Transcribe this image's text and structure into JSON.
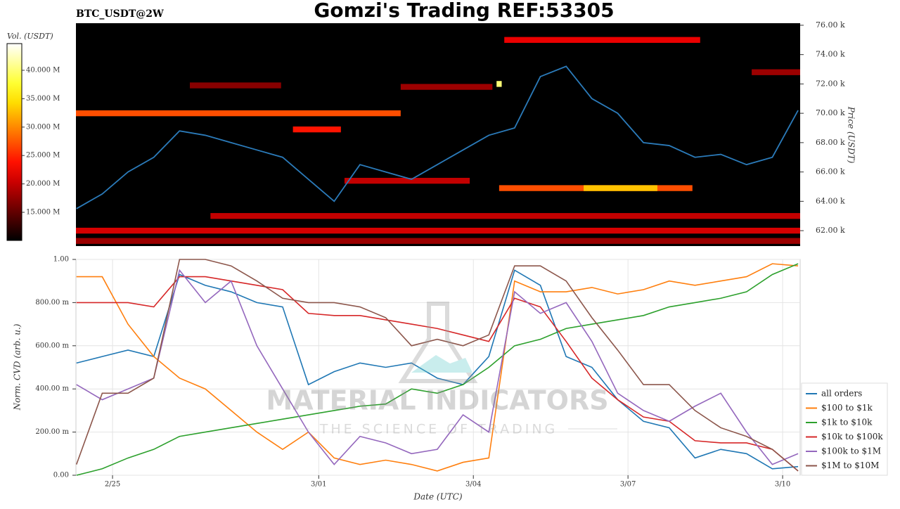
{
  "header": {
    "symbol": "BTC_USDT@2W",
    "title": "Gomzi's Trading REF:53305"
  },
  "watermark": {
    "title": "MATERIAL INDICATORS",
    "subtitle": "THE SCIENCE OF TRADING"
  },
  "chart_data": [
    {
      "type": "heatmap",
      "ylabel": "Price (USDT)",
      "xlim": [
        -0.71,
        13.34
      ],
      "ylim": [
        60950,
        76140
      ],
      "yticks": [
        {
          "value": 62000,
          "label": "62.00 k"
        },
        {
          "value": 64000,
          "label": "64.00 k"
        },
        {
          "value": 66000,
          "label": "66.00 k"
        },
        {
          "value": 68000,
          "label": "68.00 k"
        },
        {
          "value": 70000,
          "label": "70.00 k"
        },
        {
          "value": 72000,
          "label": "72.00 k"
        },
        {
          "value": 74000,
          "label": "74.00 k"
        },
        {
          "value": 76000,
          "label": "76.00 k"
        }
      ],
      "colorbar": {
        "label": "Vol. (USDT)",
        "lim": [
          10050000,
          44700000
        ],
        "ticks": [
          {
            "value": 15000000,
            "label": "15.000 M"
          },
          {
            "value": 20000000,
            "label": "20.000 M"
          },
          {
            "value": 25000000,
            "label": "25.000 M"
          },
          {
            "value": 30000000,
            "label": "30.000 M"
          },
          {
            "value": 35000000,
            "label": "35.000 M"
          },
          {
            "value": 40000000,
            "label": "40.000 M"
          }
        ]
      },
      "bands": [
        {
          "price": 70000,
          "x0": -0.71,
          "x1": 5.59,
          "volume": 27000000
        },
        {
          "price": 75000,
          "x0": 7.6,
          "x1": 11.4,
          "volume": 22000000
        },
        {
          "price": 64900,
          "x0": 7.5,
          "x1": 11.25,
          "volume": 27000000
        },
        {
          "price": 64900,
          "x0": 9.14,
          "x1": 10.57,
          "volume": 33000000
        },
        {
          "price": 63000,
          "x0": 1.9,
          "x1": 13.34,
          "volume": 20000000
        },
        {
          "price": 62000,
          "x0": -0.71,
          "x1": 13.34,
          "volume": 21000000
        },
        {
          "price": 61300,
          "x0": -0.71,
          "x1": 13.34,
          "volume": 18000000
        },
        {
          "price": 68900,
          "x0": 3.5,
          "x1": 4.43,
          "volume": 24000000
        },
        {
          "price": 65400,
          "x0": 4.5,
          "x1": 6.93,
          "volume": 20000000
        },
        {
          "price": 71800,
          "x0": 5.59,
          "x1": 7.37,
          "volume": 18000000
        },
        {
          "price": 71900,
          "x0": 1.5,
          "x1": 3.27,
          "volume": 17000000
        },
        {
          "price": 72800,
          "x0": 12.4,
          "x1": 13.34,
          "volume": 18000000
        },
        {
          "price": 72000,
          "x0": 7.45,
          "x1": 7.55,
          "volume": 40000000
        }
      ],
      "price": {
        "color": "#2b7bba",
        "x": [
          -0.7,
          -0.2,
          0.3,
          0.8,
          1.3,
          1.8,
          2.3,
          2.8,
          3.3,
          3.8,
          4.3,
          4.8,
          5.3,
          5.8,
          6.3,
          6.8,
          7.3,
          7.8,
          8.3,
          8.8,
          9.3,
          9.8,
          10.3,
          10.8,
          11.3,
          11.8,
          12.3,
          12.8,
          13.3
        ],
        "values": [
          63500,
          64500,
          66000,
          67000,
          68800,
          68500,
          68000,
          67500,
          67000,
          65500,
          64000,
          66500,
          66000,
          65500,
          66500,
          67500,
          68500,
          69000,
          72500,
          73200,
          71000,
          70000,
          68000,
          67800,
          67000,
          67200,
          66500,
          67000,
          70200
        ]
      }
    },
    {
      "type": "line",
      "xlabel": "Date (UTC)",
      "ylabel": "Norm. CVD (arb. u.)",
      "xlim": [
        -0.71,
        13.34
      ],
      "ylim": [
        0,
        1.0
      ],
      "xticks": [
        {
          "value": 0,
          "label": "2/25"
        },
        {
          "value": 4,
          "label": "3/01"
        },
        {
          "value": 7,
          "label": "3/04"
        },
        {
          "value": 10,
          "label": "3/07"
        },
        {
          "value": 13,
          "label": "3/10"
        }
      ],
      "yticks": [
        {
          "value": 0,
          "label": "0.00"
        },
        {
          "value": 0.2,
          "label": "200.00 m"
        },
        {
          "value": 0.4,
          "label": "400.00 m"
        },
        {
          "value": 0.6,
          "label": "600.00 m"
        },
        {
          "value": 0.8,
          "label": "800.00 m"
        },
        {
          "value": 1.0,
          "label": "1.00"
        }
      ],
      "grid": true,
      "legend": "lower-right",
      "x": [
        -0.7,
        -0.2,
        0.3,
        0.8,
        1.3,
        1.8,
        2.3,
        2.8,
        3.3,
        3.8,
        4.3,
        4.8,
        5.3,
        5.8,
        6.3,
        6.8,
        7.3,
        7.8,
        8.3,
        8.8,
        9.3,
        9.8,
        10.3,
        10.8,
        11.3,
        11.8,
        12.3,
        12.8,
        13.3
      ],
      "series": [
        {
          "name": "all orders",
          "color": "#1f77b4",
          "values": [
            0.52,
            0.55,
            0.58,
            0.55,
            0.93,
            0.88,
            0.85,
            0.8,
            0.78,
            0.42,
            0.48,
            0.52,
            0.5,
            0.52,
            0.45,
            0.42,
            0.55,
            0.95,
            0.88,
            0.55,
            0.5,
            0.35,
            0.25,
            0.22,
            0.08,
            0.12,
            0.1,
            0.03,
            0.04
          ]
        },
        {
          "name": "$100 to $1k",
          "color": "#ff7f0e",
          "values": [
            0.92,
            0.92,
            0.7,
            0.55,
            0.45,
            0.4,
            0.3,
            0.2,
            0.12,
            0.2,
            0.08,
            0.05,
            0.07,
            0.05,
            0.02,
            0.06,
            0.08,
            0.9,
            0.85,
            0.85,
            0.87,
            0.84,
            0.86,
            0.9,
            0.88,
            0.9,
            0.92,
            0.98,
            0.97
          ]
        },
        {
          "name": "$1k to $10k",
          "color": "#2ca02c",
          "values": [
            0.0,
            0.03,
            0.08,
            0.12,
            0.18,
            0.2,
            0.22,
            0.24,
            0.26,
            0.28,
            0.3,
            0.32,
            0.33,
            0.4,
            0.38,
            0.42,
            0.5,
            0.6,
            0.63,
            0.68,
            0.7,
            0.72,
            0.74,
            0.78,
            0.8,
            0.82,
            0.85,
            0.93,
            0.98
          ]
        },
        {
          "name": "$10k to $100k",
          "color": "#d62728",
          "values": [
            0.8,
            0.8,
            0.8,
            0.78,
            0.92,
            0.92,
            0.9,
            0.88,
            0.86,
            0.75,
            0.74,
            0.74,
            0.72,
            0.7,
            0.68,
            0.65,
            0.62,
            0.82,
            0.78,
            0.62,
            0.45,
            0.35,
            0.27,
            0.25,
            0.16,
            0.15,
            0.15,
            0.12,
            0.02
          ]
        },
        {
          "name": "$100k to $1M",
          "color": "#9467bd",
          "values": [
            0.42,
            0.35,
            0.4,
            0.45,
            0.95,
            0.8,
            0.9,
            0.6,
            0.4,
            0.2,
            0.05,
            0.18,
            0.15,
            0.1,
            0.12,
            0.28,
            0.2,
            0.85,
            0.75,
            0.8,
            0.62,
            0.38,
            0.3,
            0.25,
            0.32,
            0.38,
            0.2,
            0.05,
            0.1
          ]
        },
        {
          "name": "$1M to $10M",
          "color": "#8c564b",
          "values": [
            0.05,
            0.38,
            0.38,
            0.45,
            1.0,
            1.0,
            0.97,
            0.9,
            0.82,
            0.8,
            0.8,
            0.78,
            0.73,
            0.6,
            0.63,
            0.6,
            0.65,
            0.97,
            0.97,
            0.9,
            0.73,
            0.58,
            0.42,
            0.42,
            0.3,
            0.22,
            0.18,
            0.12,
            0.02
          ]
        }
      ]
    }
  ]
}
